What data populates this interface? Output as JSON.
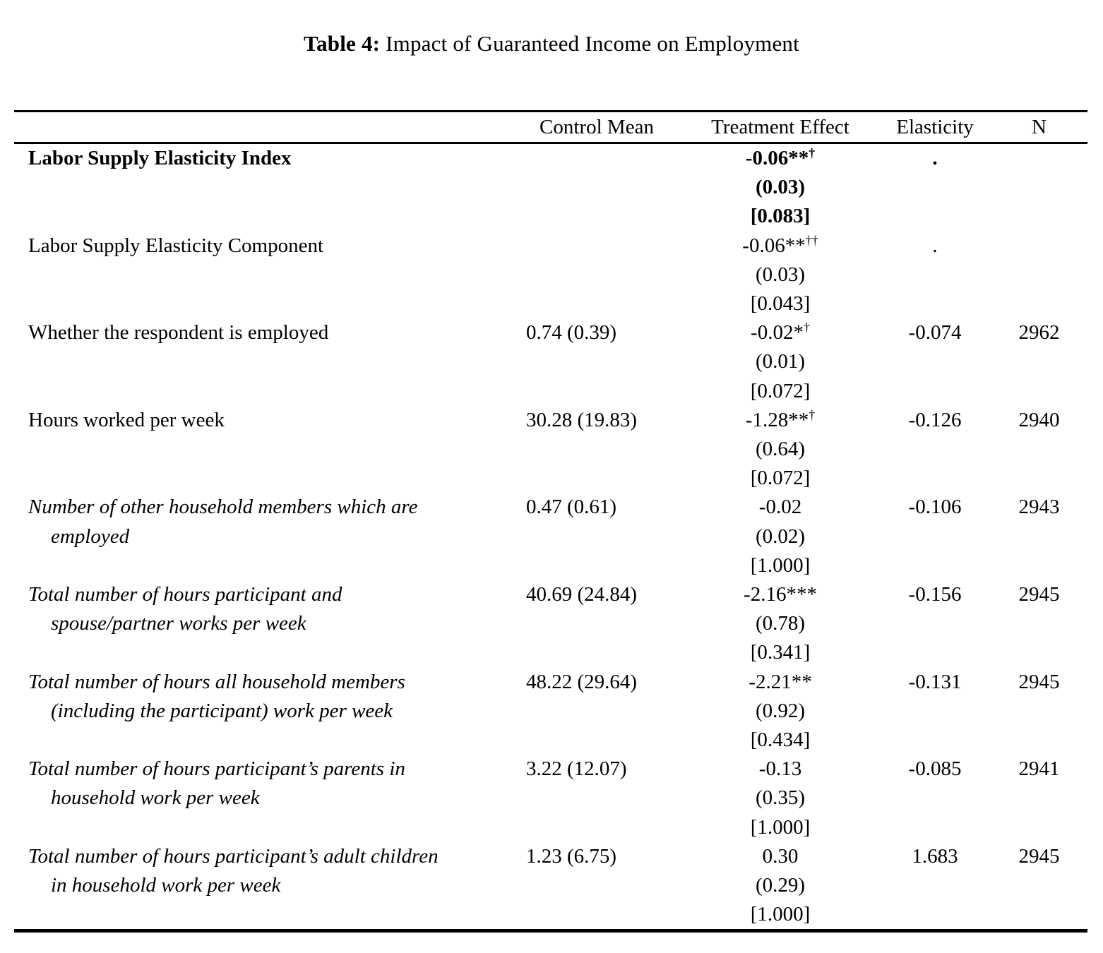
{
  "title": {
    "prefix": "Table 4:",
    "text": "Impact of Guaranteed Income on Employment"
  },
  "table": {
    "columns": [
      "",
      "Control Mean",
      "Treatment Effect",
      "Elasticity",
      "N"
    ],
    "rows": [
      {
        "label_lines": [
          "Labor Supply Elasticity Index"
        ],
        "label_style": "bold",
        "control_mean": "",
        "effect": "-0.06**",
        "effect_sup": "†",
        "se": "(0.03)",
        "pval": "[0.083]",
        "effect_bold": true,
        "elasticity": ".",
        "n": ""
      },
      {
        "label_lines": [
          "Labor Supply Elasticity Component"
        ],
        "label_style": "normal",
        "control_mean": "",
        "effect": "-0.06**",
        "effect_sup": "††",
        "se": "(0.03)",
        "pval": "[0.043]",
        "effect_bold": false,
        "elasticity": ".",
        "n": ""
      },
      {
        "label_lines": [
          "Whether the respondent is employed"
        ],
        "label_style": "normal",
        "control_mean": "0.74 (0.39)",
        "effect": "-0.02*",
        "effect_sup": "†",
        "se": "(0.01)",
        "pval": "[0.072]",
        "effect_bold": false,
        "elasticity": "-0.074",
        "n": "2962"
      },
      {
        "label_lines": [
          "Hours worked per week"
        ],
        "label_style": "normal",
        "control_mean": "30.28 (19.83)",
        "effect": "-1.28**",
        "effect_sup": "†",
        "se": "(0.64)",
        "pval": "[0.072]",
        "effect_bold": false,
        "elasticity": "-0.126",
        "n": "2940"
      },
      {
        "label_lines": [
          "Number of other household members which are",
          "employed"
        ],
        "label_style": "italic",
        "control_mean": "0.47 (0.61)",
        "effect": "-0.02",
        "effect_sup": "",
        "se": "(0.02)",
        "pval": "[1.000]",
        "effect_bold": false,
        "elasticity": "-0.106",
        "n": "2943"
      },
      {
        "label_lines": [
          "Total number of hours participant and",
          "spouse/partner works per week"
        ],
        "label_style": "italic",
        "control_mean": "40.69 (24.84)",
        "effect": "-2.16***",
        "effect_sup": "",
        "se": "(0.78)",
        "pval": "[0.341]",
        "effect_bold": false,
        "elasticity": "-0.156",
        "n": "2945"
      },
      {
        "label_lines": [
          "Total number of hours all household members",
          "(including the participant) work per week"
        ],
        "label_style": "italic",
        "control_mean": "48.22 (29.64)",
        "effect": "-2.21**",
        "effect_sup": "",
        "se": "(0.92)",
        "pval": "[0.434]",
        "effect_bold": false,
        "elasticity": "-0.131",
        "n": "2945"
      },
      {
        "label_lines": [
          "Total number of hours participant’s parents in",
          "household work per week"
        ],
        "label_style": "italic",
        "control_mean": "3.22 (12.07)",
        "effect": "-0.13",
        "effect_sup": "",
        "se": "(0.35)",
        "pval": "[1.000]",
        "effect_bold": false,
        "elasticity": "-0.085",
        "n": "2941"
      },
      {
        "label_lines": [
          "Total number of hours participant’s adult children",
          "in household work per week"
        ],
        "label_style": "italic",
        "control_mean": "1.23 (6.75)",
        "effect": "0.30",
        "effect_sup": "",
        "se": "(0.29)",
        "pval": "[1.000]",
        "effect_bold": false,
        "elasticity": "1.683",
        "n": "2945"
      }
    ]
  }
}
